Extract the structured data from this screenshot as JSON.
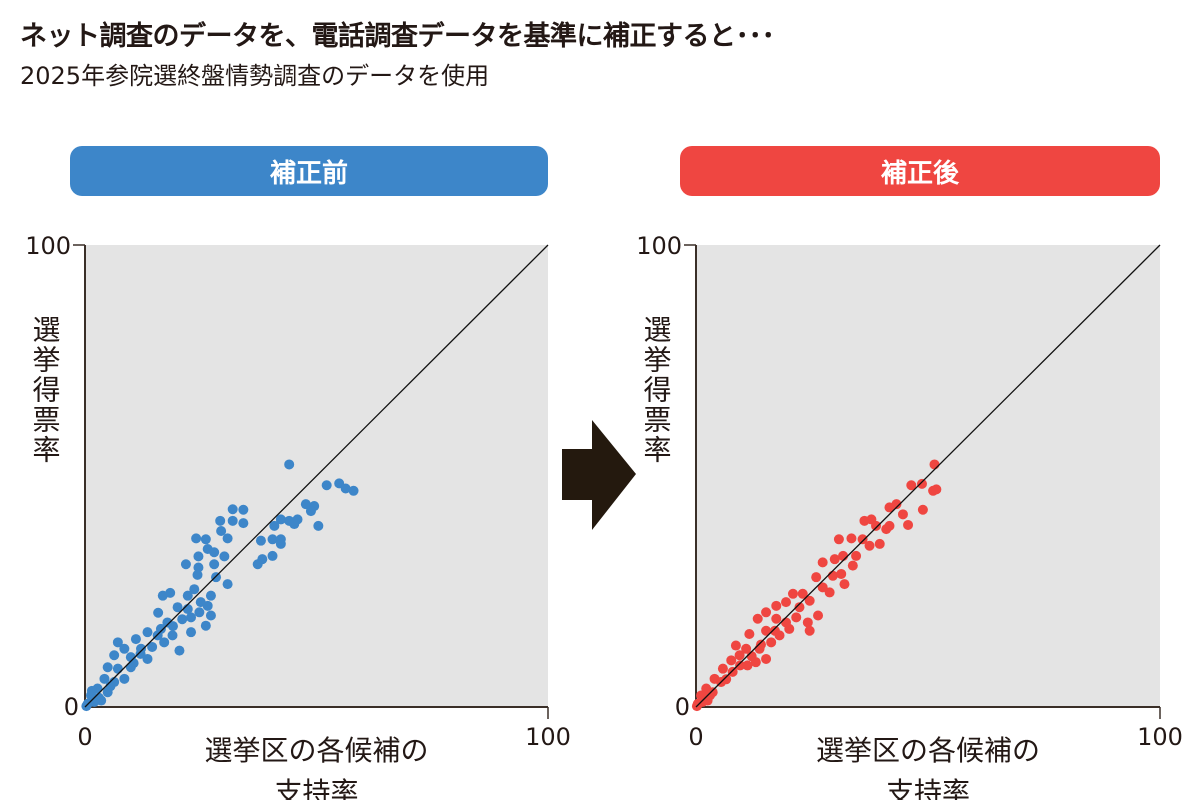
{
  "title": "ネット調査のデータを、電話調査データを基準に補正すると･･･",
  "subtitle": "2025年参院選終盤情勢調査のデータを使用",
  "colors": {
    "before": "#3d86c9",
    "after": "#ef4641",
    "panel_bg": "#e4e4e4",
    "arrow": "#24190e"
  },
  "arrow_icon": "right-arrow",
  "chart_data": [
    {
      "type": "scatter",
      "title": "補正前",
      "xlabel": "選挙区の各候補の支持率",
      "ylabel": "選挙得票率",
      "xlim": [
        0,
        100
      ],
      "ylim": [
        0,
        100
      ],
      "xticks": [
        "0",
        "100"
      ],
      "yticks": [
        "0",
        "100"
      ],
      "reference_line": "y=x",
      "grid": false,
      "points": [
        [
          44.1,
          52.5
        ],
        [
          52.2,
          48
        ],
        [
          54.9,
          48.4
        ],
        [
          56.3,
          47.3
        ],
        [
          58,
          46.8
        ],
        [
          31.9,
          42.8
        ],
        [
          34.2,
          42.7
        ],
        [
          29.2,
          40.3
        ],
        [
          31.9,
          40.3
        ],
        [
          34.2,
          39.8
        ],
        [
          29.4,
          38.1
        ],
        [
          24,
          36.5
        ],
        [
          26.1,
          36.3
        ],
        [
          30.8,
          36.5
        ],
        [
          26.5,
          34.2
        ],
        [
          27.9,
          33.5
        ],
        [
          24.5,
          32.6
        ],
        [
          30.1,
          32.6
        ],
        [
          21.8,
          30.9
        ],
        [
          24.5,
          30.2
        ],
        [
          27.9,
          30.9
        ],
        [
          24.3,
          28.6
        ],
        [
          28.3,
          28.1
        ],
        [
          30.8,
          26.6
        ],
        [
          16.8,
          24.1
        ],
        [
          18.4,
          24.7
        ],
        [
          22.2,
          24.1
        ],
        [
          25,
          22.7
        ],
        [
          27.2,
          24.1
        ],
        [
          26.5,
          21.9
        ],
        [
          20,
          21.6
        ],
        [
          15.8,
          20.4
        ],
        [
          22.9,
          19.4
        ],
        [
          27.2,
          19.8
        ],
        [
          26.1,
          17.6
        ],
        [
          17.8,
          18.3
        ],
        [
          22.9,
          16.2
        ],
        [
          18.9,
          15.5
        ],
        [
          20.4,
          12.2
        ],
        [
          16.4,
          16.9
        ],
        [
          13.5,
          16.2
        ],
        [
          11,
          14.7
        ],
        [
          7.1,
          14
        ],
        [
          8.5,
          12.6
        ],
        [
          12.1,
          12.6
        ],
        [
          6.3,
          11.2
        ],
        [
          9.9,
          10.8
        ],
        [
          13.5,
          10.4
        ],
        [
          4.9,
          8.6
        ],
        [
          7.1,
          8.3
        ],
        [
          9.9,
          8.6
        ],
        [
          4.2,
          6.1
        ],
        [
          6.3,
          5.4
        ],
        [
          8.5,
          6.1
        ],
        [
          2.7,
          4
        ],
        [
          4.9,
          3.2
        ],
        [
          1.3,
          2.5
        ],
        [
          3.5,
          1.4
        ],
        [
          0.6,
          0.7
        ],
        [
          2,
          1.1
        ],
        [
          38,
          36
        ],
        [
          40.5,
          36.3
        ],
        [
          42.3,
          36.3
        ],
        [
          37.3,
          30.9
        ],
        [
          38.3,
          32
        ],
        [
          40.5,
          32.7
        ],
        [
          40.9,
          39.2
        ],
        [
          42.3,
          40.6
        ],
        [
          44.1,
          40.3
        ],
        [
          45.9,
          40.6
        ],
        [
          45.2,
          39.6
        ],
        [
          47.7,
          43.9
        ],
        [
          49.5,
          43.5
        ],
        [
          50.4,
          39.2
        ],
        [
          48.8,
          42.4
        ],
        [
          42.3,
          35.3
        ],
        [
          22.2,
          21.2
        ],
        [
          23.6,
          25.5
        ],
        [
          24.7,
          20.5
        ],
        [
          15.7,
          15.5
        ],
        [
          17.1,
          14
        ],
        [
          3,
          2
        ],
        [
          1.5,
          3.5
        ],
        [
          5.5,
          4.5
        ],
        [
          10.5,
          9.5
        ],
        [
          12,
          11.5
        ],
        [
          14.5,
          13
        ],
        [
          19,
          17.5
        ],
        [
          21,
          19
        ],
        [
          0.3,
          0.2
        ]
      ]
    },
    {
      "type": "scatter",
      "title": "補正後",
      "xlabel": "選挙区の各候補の支持率",
      "ylabel": "選挙得票率",
      "xlim": [
        0,
        100
      ],
      "ylim": [
        0,
        100
      ],
      "xticks": [
        "0",
        "100"
      ],
      "yticks": [
        "0",
        "100"
      ],
      "reference_line": "y=x",
      "grid": false,
      "points": [
        [
          51.4,
          52.5
        ],
        [
          46.4,
          48
        ],
        [
          48.7,
          48.3
        ],
        [
          51.1,
          46.8
        ],
        [
          51.8,
          47.1
        ],
        [
          48.9,
          42.7
        ],
        [
          41.7,
          43.2
        ],
        [
          43.2,
          43.9
        ],
        [
          44.6,
          41.7
        ],
        [
          45.7,
          39.4
        ],
        [
          41.7,
          39.2
        ],
        [
          36.3,
          40.3
        ],
        [
          37.8,
          40.6
        ],
        [
          38.8,
          39.2
        ],
        [
          41,
          38.5
        ],
        [
          30.8,
          36.3
        ],
        [
          33.5,
          36.5
        ],
        [
          35.9,
          36.3
        ],
        [
          37.4,
          34.9
        ],
        [
          39.6,
          35.3
        ],
        [
          29.9,
          32
        ],
        [
          31.7,
          32.7
        ],
        [
          34.5,
          32.7
        ],
        [
          27.3,
          31.3
        ],
        [
          33.8,
          30.6
        ],
        [
          25.9,
          28.1
        ],
        [
          29.5,
          28.4
        ],
        [
          31.3,
          28.8
        ],
        [
          32,
          26.6
        ],
        [
          28.8,
          24.8
        ],
        [
          27.3,
          25.9
        ],
        [
          20.9,
          24.5
        ],
        [
          23,
          24.5
        ],
        [
          24.5,
          23
        ],
        [
          19.4,
          22.7
        ],
        [
          22.3,
          21.6
        ],
        [
          17.3,
          21.9
        ],
        [
          26.3,
          19.8
        ],
        [
          24.1,
          18.3
        ],
        [
          24.5,
          16.5
        ],
        [
          15.1,
          20.5
        ],
        [
          13.3,
          19.1
        ],
        [
          17.3,
          19.1
        ],
        [
          19.4,
          18.3
        ],
        [
          11.5,
          15.8
        ],
        [
          15.1,
          16.5
        ],
        [
          18,
          15.5
        ],
        [
          8.6,
          13.3
        ],
        [
          10.8,
          12.6
        ],
        [
          13.7,
          12.6
        ],
        [
          15.1,
          10.4
        ],
        [
          12.9,
          9.7
        ],
        [
          7.6,
          10.1
        ],
        [
          11.1,
          9
        ],
        [
          5.8,
          8.3
        ],
        [
          7.9,
          7.6
        ],
        [
          4,
          6.1
        ],
        [
          5.4,
          5.4
        ],
        [
          2.2,
          4
        ],
        [
          3.6,
          3.2
        ],
        [
          1.1,
          2.5
        ],
        [
          2.5,
          1.4
        ],
        [
          0.4,
          0.7
        ],
        [
          1.4,
          1.1
        ],
        [
          16.2,
          14
        ],
        [
          21.6,
          19.4
        ],
        [
          20.1,
          16.9
        ],
        [
          9.4,
          11.2
        ],
        [
          3,
          2.5
        ],
        [
          6.5,
          6
        ],
        [
          9.5,
          9
        ],
        [
          12,
          11
        ],
        [
          14,
          13.5
        ],
        [
          17,
          16.5
        ],
        [
          0.2,
          0.2
        ]
      ]
    }
  ]
}
